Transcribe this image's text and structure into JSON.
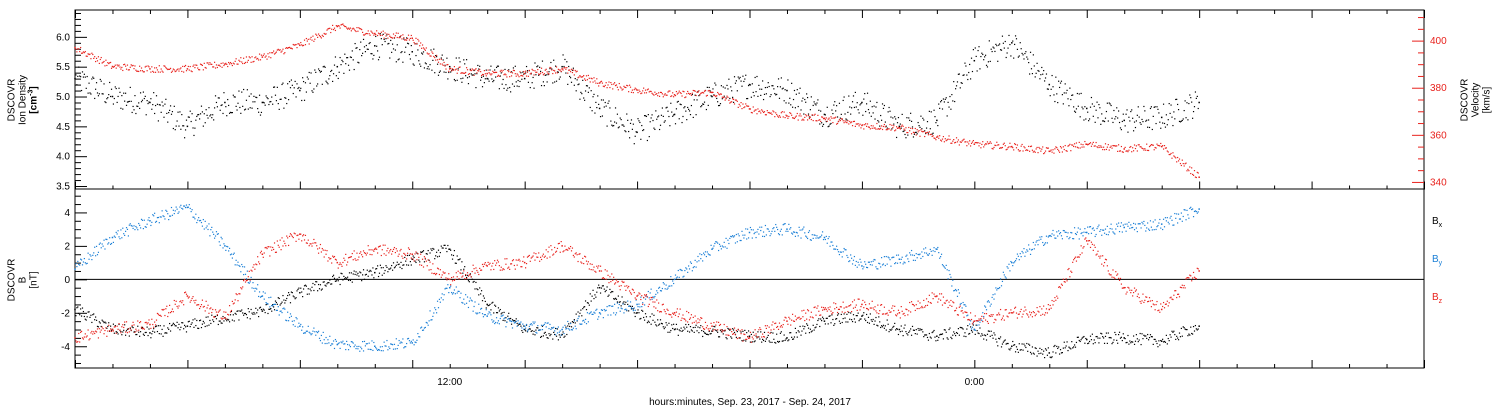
{
  "xlabel": "hours:minutes, Sep. 23, 2017 - Sep. 24, 2017",
  "x_ticks": [
    "12:00",
    "0:00"
  ],
  "chart_data": [
    {
      "type": "scatter",
      "panel": "top",
      "left_axis": {
        "label_lines": [
          "DSCOVR",
          "Ion Density"
        ],
        "unit": "[cm",
        "unit_sup": "-3",
        "unit_end": "]",
        "ticks": [
          "3.5",
          "4.0",
          "4.5",
          "5.0",
          "5.5",
          "6.0"
        ],
        "ylim": [
          3.45,
          6.45
        ]
      },
      "right_axis": {
        "label_lines": [
          "DSCOVR",
          "Velocity",
          "[km/s]"
        ],
        "ticks": [
          "340",
          "360",
          "380",
          "400"
        ],
        "ylim": [
          337,
          413
        ],
        "color": "#e8221d"
      },
      "x_range_hours": [
        0,
        36
      ],
      "series": [
        {
          "axis": "left",
          "color": "#000000",
          "x": [
            0,
            1,
            2,
            3,
            4,
            5,
            6,
            7,
            8,
            9,
            10,
            11,
            12,
            13,
            14,
            15,
            16,
            17,
            18,
            19,
            20,
            21,
            22,
            23,
            24,
            25,
            26,
            27,
            28,
            29,
            30
          ],
          "y": [
            5.3,
            5.0,
            4.9,
            4.5,
            4.9,
            4.9,
            5.1,
            5.5,
            5.85,
            5.75,
            5.5,
            5.3,
            5.3,
            5.5,
            4.8,
            4.4,
            4.7,
            5.0,
            5.2,
            5.1,
            4.7,
            4.9,
            4.5,
            4.6,
            5.6,
            5.9,
            5.2,
            4.8,
            4.6,
            4.65,
            4.9
          ]
        },
        {
          "axis": "right",
          "color": "#e8221d",
          "x": [
            0,
            1,
            2,
            3,
            4,
            5,
            6,
            7,
            8,
            9,
            10,
            11,
            12,
            13,
            14,
            15,
            16,
            17,
            18,
            19,
            20,
            21,
            22,
            23,
            24,
            25,
            26,
            27,
            28,
            29,
            30
          ],
          "y": [
            397,
            389,
            388,
            388,
            390,
            393,
            398,
            406,
            403,
            401,
            388,
            386,
            386,
            388,
            382,
            379,
            377,
            378,
            371,
            368,
            367,
            364,
            363,
            359,
            356,
            355,
            353,
            356,
            354,
            355,
            342
          ]
        }
      ]
    },
    {
      "type": "scatter",
      "panel": "bottom",
      "left_axis": {
        "label_lines": [
          "DSCOVR",
          "B",
          "[nT]"
        ],
        "ticks": [
          "-4",
          "-2",
          "0",
          "2",
          "4"
        ],
        "ylim": [
          -5.3,
          5.4
        ]
      },
      "x_range_hours": [
        0,
        36
      ],
      "legend": [
        {
          "name": "B",
          "sub": "x",
          "color": "#000000"
        },
        {
          "name": "B",
          "sub": "y",
          "color": "#1a7fd6"
        },
        {
          "name": "B",
          "sub": "z",
          "color": "#e8221d"
        }
      ],
      "series": [
        {
          "name": "Bx",
          "color": "#000000",
          "x": [
            0,
            1,
            2,
            3,
            4,
            5,
            6,
            7,
            8,
            9,
            10,
            11,
            12,
            13,
            14,
            15,
            16,
            17,
            18,
            19,
            20,
            21,
            22,
            23,
            24,
            25,
            26,
            27,
            28,
            29,
            30
          ],
          "y": [
            -1.8,
            -3.0,
            -3.2,
            -2.8,
            -2.3,
            -1.9,
            -0.8,
            0.0,
            0.4,
            1.2,
            1.8,
            -1.5,
            -3.0,
            -3.3,
            -0.5,
            -2.0,
            -3.0,
            -3.1,
            -3.4,
            -3.5,
            -2.5,
            -2.2,
            -3.0,
            -3.4,
            -3.0,
            -4.0,
            -4.4,
            -3.6,
            -3.5,
            -3.7,
            -2.8
          ]
        },
        {
          "name": "By",
          "color": "#1a7fd6",
          "x": [
            0,
            1,
            2,
            3,
            4,
            5,
            6,
            7,
            8,
            9,
            10,
            11,
            12,
            13,
            14,
            15,
            16,
            17,
            18,
            19,
            20,
            21,
            22,
            23,
            24,
            25,
            26,
            27,
            28,
            29,
            30
          ],
          "y": [
            0.6,
            2.5,
            3.5,
            4.3,
            2.0,
            -1.0,
            -2.8,
            -3.9,
            -4.0,
            -3.8,
            -0.5,
            -2.2,
            -2.8,
            -3.0,
            -2.0,
            -1.5,
            0.0,
            1.8,
            2.8,
            3.0,
            2.5,
            0.8,
            1.2,
            1.8,
            -3.0,
            1.0,
            2.6,
            2.8,
            3.1,
            3.3,
            4.2
          ]
        },
        {
          "name": "Bz",
          "color": "#e8221d",
          "x": [
            0,
            1,
            2,
            3,
            4,
            5,
            6,
            7,
            8,
            9,
            10,
            11,
            12,
            13,
            14,
            15,
            16,
            17,
            18,
            19,
            20,
            21,
            22,
            23,
            24,
            25,
            26,
            27,
            28,
            29,
            30
          ],
          "y": [
            -3.5,
            -3.0,
            -2.7,
            -1.0,
            -2.3,
            1.5,
            2.7,
            1.0,
            1.8,
            1.5,
            0.0,
            0.8,
            1.0,
            2.0,
            0.5,
            -1.0,
            -2.0,
            -2.8,
            -3.5,
            -2.5,
            -1.8,
            -1.5,
            -2.0,
            -1.0,
            -2.5,
            -2.0,
            -1.8,
            2.3,
            -0.5,
            -1.8,
            0.5
          ]
        }
      ]
    }
  ]
}
